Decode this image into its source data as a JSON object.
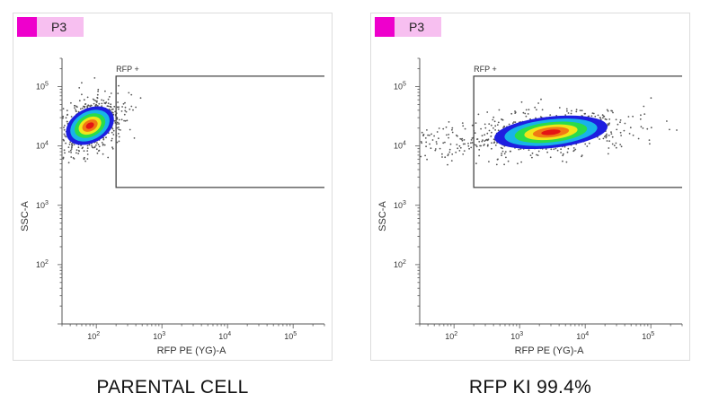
{
  "panels": [
    {
      "badge_label": "P3",
      "gate_label": "RFP +",
      "xlabel": "RFP PE (YG)-A",
      "ylabel": "SSC-A",
      "caption": "PARENTAL CELL"
    },
    {
      "badge_label": "P3",
      "gate_label": "RFP +",
      "xlabel": "RFP PE (YG)-A",
      "ylabel": "SSC-A",
      "caption": "RFP KI 99.4%"
    }
  ],
  "colors": {
    "badge_bg": "#f7bff0",
    "swatch": "#ee00cc",
    "density": [
      "#1e1ee0",
      "#18b4e8",
      "#2adc4a",
      "#f0e61a",
      "#f07a14",
      "#e41414"
    ],
    "scatter": "#555555"
  },
  "chart_data": [
    {
      "type": "scatter",
      "title": "",
      "subtitle": "PARENTAL CELL",
      "xlabel": "RFP PE (YG)-A",
      "ylabel": "SSC-A",
      "xscale": "log",
      "yscale": "log",
      "xlim": [
        30,
        300000
      ],
      "ylim": [
        10,
        300000
      ],
      "x_ticks": [
        {
          "value": 100,
          "label": "10",
          "exp": "2"
        },
        {
          "value": 1000,
          "label": "10",
          "exp": "3"
        },
        {
          "value": 10000,
          "label": "10",
          "exp": "4"
        },
        {
          "value": 100000,
          "label": "10",
          "exp": "5"
        }
      ],
      "y_ticks": [
        {
          "value": 100,
          "label": "10",
          "exp": "2"
        },
        {
          "value": 1000,
          "label": "10",
          "exp": "3"
        },
        {
          "value": 10000,
          "label": "10",
          "exp": "4"
        },
        {
          "value": 100000,
          "label": "10",
          "exp": "5"
        }
      ],
      "gate": {
        "name": "RFP +",
        "x_range": [
          200,
          300000
        ],
        "y_range": [
          2000,
          150000
        ]
      },
      "population": {
        "center_x": 80,
        "center_y": 22000,
        "x_range": [
          30,
          300
        ],
        "y_range": [
          7000,
          60000
        ]
      },
      "grid": false,
      "legend": "none"
    },
    {
      "type": "scatter",
      "title": "",
      "subtitle": "RFP KI 99.4%",
      "xlabel": "RFP PE (YG)-A",
      "ylabel": "SSC-A",
      "xscale": "log",
      "yscale": "log",
      "xlim": [
        30,
        300000
      ],
      "ylim": [
        10,
        300000
      ],
      "x_ticks": [
        {
          "value": 100,
          "label": "10",
          "exp": "2"
        },
        {
          "value": 1000,
          "label": "10",
          "exp": "3"
        },
        {
          "value": 10000,
          "label": "10",
          "exp": "4"
        },
        {
          "value": 100000,
          "label": "10",
          "exp": "5"
        }
      ],
      "y_ticks": [
        {
          "value": 100,
          "label": "10",
          "exp": "2"
        },
        {
          "value": 1000,
          "label": "10",
          "exp": "3"
        },
        {
          "value": 10000,
          "label": "10",
          "exp": "4"
        },
        {
          "value": 100000,
          "label": "10",
          "exp": "5"
        }
      ],
      "gate": {
        "name": "RFP +",
        "x_range": [
          200,
          300000
        ],
        "y_range": [
          2000,
          150000
        ]
      },
      "population": {
        "center_x": 3000,
        "center_y": 17000,
        "x_range": [
          120,
          20000
        ],
        "y_range": [
          7000,
          50000
        ]
      },
      "percent_in_gate": 99.4,
      "grid": false,
      "legend": "none"
    }
  ]
}
